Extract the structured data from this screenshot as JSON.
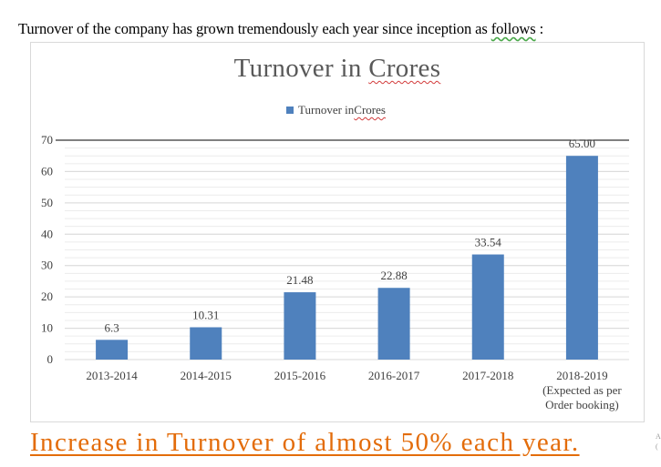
{
  "intro": {
    "text_before": "Turnover of the company has grown tremendously each year since inception as ",
    "text_follows": "follows",
    "text_after": " :"
  },
  "chart_data": {
    "type": "bar",
    "title_part1": "Turnover in ",
    "title_part2": "Crores",
    "legend": {
      "label_part1": "Turnover in ",
      "label_part2": "Crores"
    },
    "series": [
      {
        "name": "Turnover in Crores",
        "color": "#4f81bd",
        "values": [
          6.3,
          10.31,
          21.48,
          22.88,
          33.54,
          65.0
        ],
        "value_labels": [
          "6.3",
          "10.31",
          "21.48",
          "22.88",
          "33.54",
          "65.00"
        ]
      }
    ],
    "categories": [
      [
        "2013-2014"
      ],
      [
        "2014-2015"
      ],
      [
        "2015-2016"
      ],
      [
        "2016-2017"
      ],
      [
        "2017-2018"
      ],
      [
        "2018-2019",
        "(Expected as per",
        "Order booking)"
      ]
    ],
    "ylim": [
      0,
      70
    ],
    "yticks": [
      0,
      10,
      20,
      30,
      40,
      50,
      60,
      70
    ],
    "xlabel": "",
    "ylabel": "",
    "grid": true,
    "reference_line": 70
  },
  "footer": {
    "text": "Increase in Turnover of almost 50% each year."
  },
  "edge_glyphs": {
    "top": "A",
    "bottom": "("
  }
}
